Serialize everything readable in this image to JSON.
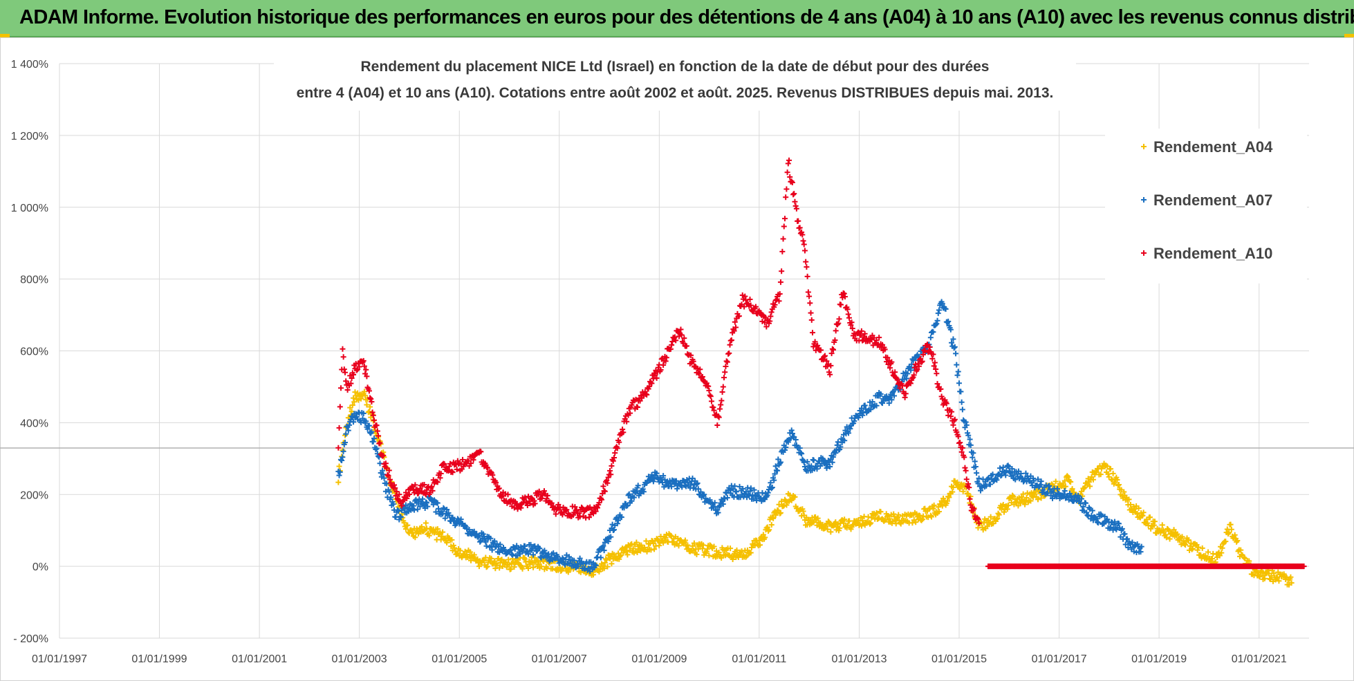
{
  "banner": {
    "title": "ADAM Informe. Evolution historique des performances en euros pour des détentions de 4 ans (A04) à 10 ans (A10) avec les revenus connus distribués"
  },
  "colors": {
    "banner": "#7fc97b",
    "A04": "#f5c000",
    "A07": "#1a6fc0",
    "A10": "#e8001c",
    "grid": "#d9d9d9"
  },
  "chart_data": {
    "type": "scatter",
    "title_line1": "Rendement du placement NICE Ltd (Israel) en fonction de la date de début pour des durées",
    "title_line2": "entre 4 (A04) et 10 ans (A10). Cotations entre août 2002 et août. 2025. Revenus DISTRIBUES depuis mai. 2013.",
    "ylim": [
      -200,
      1400
    ],
    "xlim": [
      "1997-01-01",
      "2022-01-01"
    ],
    "y_ticks": [
      {
        "v": -200,
        "label": "- 200%"
      },
      {
        "v": 0,
        "label": "0%"
      },
      {
        "v": 200,
        "label": "200%"
      },
      {
        "v": 400,
        "label": "400%"
      },
      {
        "v": 600,
        "label": "600%"
      },
      {
        "v": 800,
        "label": "800%"
      },
      {
        "v": 1000,
        "label": "1 000%"
      },
      {
        "v": 1200,
        "label": "1 200%"
      },
      {
        "v": 1400,
        "label": "1 400%"
      }
    ],
    "x_ticks": [
      "01/01/1997",
      "01/01/1999",
      "01/01/2001",
      "01/01/2003",
      "01/01/2005",
      "01/01/2007",
      "01/01/2009",
      "01/01/2011",
      "01/01/2013",
      "01/01/2015",
      "01/01/2017",
      "01/01/2019",
      "01/01/2021"
    ],
    "legend_position": "top-right",
    "grid": true,
    "marker": "+",
    "series": [
      {
        "name": "Rendement_A04",
        "color": "#f5c000",
        "points": [
          [
            "2002-08-01",
            250
          ],
          [
            "2002-10-01",
            400
          ],
          [
            "2002-12-01",
            470
          ],
          [
            "2003-02-01",
            480
          ],
          [
            "2003-04-01",
            420
          ],
          [
            "2003-06-01",
            340
          ],
          [
            "2003-08-01",
            250
          ],
          [
            "2003-10-01",
            180
          ],
          [
            "2003-12-01",
            120
          ],
          [
            "2004-02-01",
            90
          ],
          [
            "2004-04-01",
            110
          ],
          [
            "2004-06-01",
            100
          ],
          [
            "2004-09-01",
            80
          ],
          [
            "2005-01-01",
            40
          ],
          [
            "2005-06-01",
            15
          ],
          [
            "2005-12-01",
            5
          ],
          [
            "2006-06-01",
            10
          ],
          [
            "2006-12-01",
            5
          ],
          [
            "2007-06-01",
            -5
          ],
          [
            "2007-09-01",
            -15
          ],
          [
            "2007-12-01",
            10
          ],
          [
            "2008-03-01",
            30
          ],
          [
            "2008-06-01",
            50
          ],
          [
            "2008-12-01",
            60
          ],
          [
            "2009-03-01",
            80
          ],
          [
            "2009-09-01",
            50
          ],
          [
            "2010-03-01",
            40
          ],
          [
            "2010-09-01",
            30
          ],
          [
            "2011-01-01",
            70
          ],
          [
            "2011-06-01",
            160
          ],
          [
            "2011-09-01",
            200
          ],
          [
            "2011-12-01",
            130
          ],
          [
            "2012-06-01",
            110
          ],
          [
            "2012-12-01",
            120
          ],
          [
            "2013-06-01",
            140
          ],
          [
            "2013-12-01",
            130
          ],
          [
            "2014-06-01",
            150
          ],
          [
            "2014-09-01",
            170
          ],
          [
            "2014-12-01",
            230
          ],
          [
            "2015-03-01",
            210
          ],
          [
            "2015-06-01",
            110
          ],
          [
            "2015-09-01",
            130
          ],
          [
            "2016-01-01",
            180
          ],
          [
            "2016-06-01",
            190
          ],
          [
            "2016-12-01",
            220
          ],
          [
            "2017-03-01",
            240
          ],
          [
            "2017-06-01",
            190
          ],
          [
            "2017-09-01",
            250
          ],
          [
            "2017-12-01",
            280
          ],
          [
            "2018-03-01",
            230
          ],
          [
            "2018-06-01",
            170
          ],
          [
            "2018-12-01",
            110
          ],
          [
            "2019-06-01",
            80
          ],
          [
            "2019-12-01",
            30
          ],
          [
            "2020-03-01",
            20
          ],
          [
            "2020-06-01",
            110
          ],
          [
            "2020-09-01",
            20
          ],
          [
            "2020-12-01",
            -20
          ],
          [
            "2021-03-01",
            -25
          ],
          [
            "2021-06-01",
            -30
          ],
          [
            "2021-09-01",
            -45
          ]
        ]
      },
      {
        "name": "Rendement_A07",
        "color": "#1a6fc0",
        "points": [
          [
            "2002-08-01",
            250
          ],
          [
            "2002-10-01",
            380
          ],
          [
            "2002-12-01",
            420
          ],
          [
            "2003-02-01",
            410
          ],
          [
            "2003-04-01",
            370
          ],
          [
            "2003-06-01",
            280
          ],
          [
            "2003-08-01",
            200
          ],
          [
            "2003-10-01",
            140
          ],
          [
            "2004-01-01",
            170
          ],
          [
            "2004-06-01",
            180
          ],
          [
            "2004-09-01",
            150
          ],
          [
            "2005-01-01",
            120
          ],
          [
            "2005-06-01",
            80
          ],
          [
            "2005-12-01",
            40
          ],
          [
            "2006-06-01",
            50
          ],
          [
            "2006-12-01",
            20
          ],
          [
            "2007-06-01",
            10
          ],
          [
            "2007-09-01",
            0
          ],
          [
            "2007-12-01",
            60
          ],
          [
            "2008-03-01",
            130
          ],
          [
            "2008-06-01",
            190
          ],
          [
            "2008-12-01",
            250
          ],
          [
            "2009-03-01",
            230
          ],
          [
            "2009-09-01",
            230
          ],
          [
            "2010-03-01",
            160
          ],
          [
            "2010-06-01",
            210
          ],
          [
            "2010-12-01",
            200
          ],
          [
            "2011-03-01",
            190
          ],
          [
            "2011-06-01",
            300
          ],
          [
            "2011-09-01",
            370
          ],
          [
            "2011-12-01",
            280
          ],
          [
            "2012-06-01",
            290
          ],
          [
            "2012-12-01",
            420
          ],
          [
            "2013-06-01",
            470
          ],
          [
            "2013-09-01",
            470
          ],
          [
            "2014-01-01",
            550
          ],
          [
            "2014-06-01",
            620
          ],
          [
            "2014-09-01",
            740
          ],
          [
            "2014-12-01",
            600
          ],
          [
            "2015-02-01",
            420
          ],
          [
            "2015-06-01",
            220
          ],
          [
            "2015-12-01",
            270
          ],
          [
            "2016-06-01",
            240
          ],
          [
            "2016-12-01",
            200
          ],
          [
            "2017-03-01",
            200
          ],
          [
            "2017-06-01",
            180
          ],
          [
            "2017-09-01",
            140
          ],
          [
            "2018-03-01",
            110
          ],
          [
            "2018-06-01",
            60
          ],
          [
            "2018-09-01",
            40
          ]
        ]
      },
      {
        "name": "Rendement_A10",
        "color": "#e8001c",
        "points": [
          [
            "2002-08-01",
            320
          ],
          [
            "2002-09-01",
            600
          ],
          [
            "2002-10-01",
            500
          ],
          [
            "2002-12-01",
            550
          ],
          [
            "2003-02-01",
            570
          ],
          [
            "2003-04-01",
            450
          ],
          [
            "2003-06-01",
            330
          ],
          [
            "2003-08-01",
            260
          ],
          [
            "2003-11-01",
            180
          ],
          [
            "2004-02-01",
            220
          ],
          [
            "2004-06-01",
            210
          ],
          [
            "2004-09-01",
            270
          ],
          [
            "2005-01-01",
            280
          ],
          [
            "2005-06-01",
            310
          ],
          [
            "2005-10-01",
            220
          ],
          [
            "2006-02-01",
            170
          ],
          [
            "2006-06-01",
            180
          ],
          [
            "2006-09-01",
            200
          ],
          [
            "2006-12-01",
            160
          ],
          [
            "2007-06-01",
            150
          ],
          [
            "2007-09-01",
            150
          ],
          [
            "2007-12-01",
            220
          ],
          [
            "2008-03-01",
            330
          ],
          [
            "2008-06-01",
            440
          ],
          [
            "2008-09-01",
            470
          ],
          [
            "2008-12-01",
            530
          ],
          [
            "2009-03-01",
            590
          ],
          [
            "2009-06-01",
            660
          ],
          [
            "2009-09-01",
            560
          ],
          [
            "2009-12-01",
            520
          ],
          [
            "2010-03-01",
            400
          ],
          [
            "2010-06-01",
            620
          ],
          [
            "2010-09-01",
            740
          ],
          [
            "2010-12-01",
            720
          ],
          [
            "2011-03-01",
            680
          ],
          [
            "2011-06-01",
            760
          ],
          [
            "2011-08-01",
            1130
          ],
          [
            "2011-10-01",
            980
          ],
          [
            "2011-12-01",
            880
          ],
          [
            "2012-02-01",
            620
          ],
          [
            "2012-06-01",
            550
          ],
          [
            "2012-09-01",
            760
          ],
          [
            "2012-12-01",
            640
          ],
          [
            "2013-03-01",
            640
          ],
          [
            "2013-06-01",
            620
          ],
          [
            "2013-09-01",
            550
          ],
          [
            "2013-12-01",
            480
          ],
          [
            "2014-03-01",
            560
          ],
          [
            "2014-06-01",
            620
          ],
          [
            "2014-09-01",
            460
          ],
          [
            "2014-12-01",
            400
          ],
          [
            "2015-02-01",
            310
          ],
          [
            "2015-04-01",
            160
          ],
          [
            "2015-06-01",
            130
          ]
        ]
      },
      {
        "name": "Rendement_A10",
        "color": "#e8001c",
        "points": [
          [
            "2015-08-01",
            0
          ],
          [
            "2016-08-01",
            0
          ],
          [
            "2017-08-01",
            0
          ],
          [
            "2018-08-01",
            0
          ],
          [
            "2019-08-01",
            0
          ],
          [
            "2020-08-01",
            0
          ],
          [
            "2021-08-01",
            0
          ],
          [
            "2021-12-01",
            0
          ]
        ]
      }
    ]
  }
}
